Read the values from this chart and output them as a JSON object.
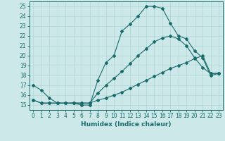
{
  "xlabel": "Humidex (Indice chaleur)",
  "bg_color": "#cce8e8",
  "grid_color": "#b0d4d4",
  "line_color": "#1a6b6b",
  "xlim": [
    -0.5,
    23.5
  ],
  "ylim": [
    14.5,
    25.5
  ],
  "xticks": [
    0,
    1,
    2,
    3,
    4,
    5,
    6,
    7,
    8,
    9,
    10,
    11,
    12,
    13,
    14,
    15,
    16,
    17,
    18,
    19,
    20,
    21,
    22,
    23
  ],
  "yticks": [
    15,
    16,
    17,
    18,
    19,
    20,
    21,
    22,
    23,
    24,
    25
  ],
  "line1_x": [
    0,
    1,
    2,
    3,
    4,
    5,
    6,
    7,
    8,
    9,
    10,
    11,
    12,
    13,
    14,
    15,
    16,
    17,
    18,
    19,
    20,
    21,
    22,
    23
  ],
  "line1_y": [
    17.0,
    16.5,
    15.7,
    15.2,
    15.2,
    15.2,
    15.0,
    15.0,
    17.5,
    19.3,
    20.0,
    22.5,
    23.2,
    24.0,
    25.0,
    25.0,
    24.8,
    23.3,
    22.0,
    21.7,
    20.5,
    19.8,
    18.0,
    18.2
  ],
  "line2_x": [
    0,
    1,
    2,
    3,
    4,
    5,
    6,
    7,
    8,
    9,
    10,
    11,
    12,
    13,
    14,
    15,
    16,
    17,
    18,
    19,
    20,
    21,
    22,
    23
  ],
  "line2_y": [
    15.5,
    15.2,
    15.2,
    15.2,
    15.2,
    15.2,
    15.2,
    15.2,
    15.5,
    15.7,
    16.0,
    16.3,
    16.7,
    17.1,
    17.5,
    17.9,
    18.3,
    18.7,
    19.0,
    19.3,
    19.7,
    20.0,
    18.2,
    18.2
  ],
  "line3_x": [
    0,
    1,
    2,
    3,
    4,
    5,
    6,
    7,
    8,
    9,
    10,
    11,
    12,
    13,
    14,
    15,
    16,
    17,
    18,
    19,
    20,
    21,
    22,
    23
  ],
  "line3_y": [
    15.5,
    15.2,
    15.2,
    15.2,
    15.2,
    15.2,
    15.2,
    15.2,
    16.2,
    17.0,
    17.7,
    18.4,
    19.2,
    20.0,
    20.7,
    21.4,
    21.8,
    22.0,
    21.7,
    21.0,
    19.8,
    18.8,
    18.2,
    18.2
  ]
}
